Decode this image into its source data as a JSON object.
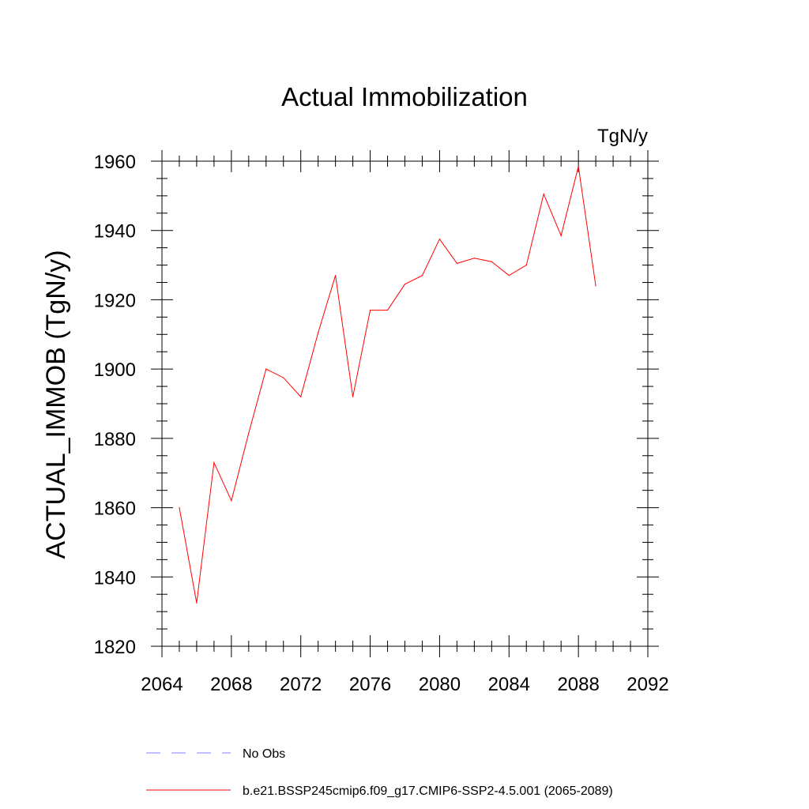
{
  "chart_data": {
    "type": "line",
    "title": "Actual Immobilization",
    "units_label": "TgN/y",
    "xlabel": "",
    "ylabel": "ACTUAL_IMMOB  (TgN/y)",
    "xlim": [
      2064,
      2092
    ],
    "ylim": [
      1820,
      1960
    ],
    "x_ticks": [
      "2064",
      "2068",
      "2072",
      "2076",
      "2080",
      "2084",
      "2088",
      "2092"
    ],
    "y_ticks": [
      "1820",
      "1840",
      "1860",
      "1880",
      "1900",
      "1920",
      "1940",
      "1960"
    ],
    "grid": false,
    "series": [
      {
        "name": "b.e21.BSSP245cmip6.f09_g17.CMIP6-SSP2-4.5.001 (2065-2089)",
        "color": "#ff0000",
        "x": [
          2065,
          2066,
          2067,
          2068,
          2069,
          2070,
          2071,
          2072,
          2073,
          2074,
          2075,
          2076,
          2077,
          2078,
          2079,
          2080,
          2081,
          2082,
          2083,
          2084,
          2085,
          2086,
          2087,
          2088,
          2089
        ],
        "values": [
          1860,
          1832.5,
          1873,
          1862,
          1881.5,
          1900,
          1897.5,
          1892,
          1910.5,
          1927,
          1892,
          1917,
          1917,
          1924.5,
          1927,
          1937.5,
          1930.5,
          1932,
          1931,
          1927,
          1930,
          1950.5,
          1938.5,
          1958.5,
          1924
        ]
      }
    ],
    "legend": [
      {
        "label": "No Obs",
        "style": "dashed",
        "color": "#8080ff"
      },
      {
        "label": "b.e21.BSSP245cmip6.f09_g17.CMIP6-SSP2-4.5.001 (2065-2089)",
        "style": "solid",
        "color": "#ff0000"
      }
    ]
  }
}
